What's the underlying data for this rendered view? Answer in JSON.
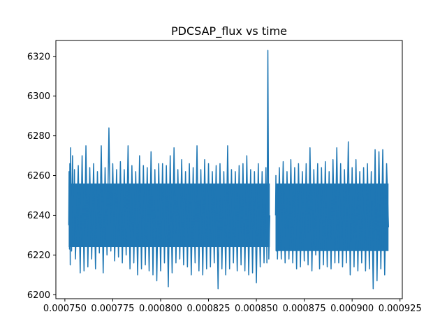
{
  "chart_data": {
    "type": "line",
    "title": "PDCSAP_flux vs time",
    "xlabel": "",
    "ylabel": "",
    "xlim": [
      0.0007453,
      0.0009262
    ],
    "ylim": [
      6198,
      6328
    ],
    "grid": false,
    "legend": "none",
    "x_ticks": [
      0.00075,
      0.000775,
      0.0008,
      0.000825,
      0.00085,
      0.000875,
      0.0009,
      0.000925
    ],
    "x_tick_labels": [
      "0.000750",
      "0.000775",
      "0.000800",
      "0.000825",
      "0.000850",
      "0.000875",
      "0.000900",
      "0.000925"
    ],
    "y_ticks": [
      6200,
      6220,
      6240,
      6260,
      6280,
      6300,
      6320
    ],
    "y_tick_labels": [
      "6200",
      "6220",
      "6240",
      "6260",
      "6280",
      "6300",
      "6320"
    ],
    "series": [
      {
        "color": "#1f77b4",
        "segments": [
          {
            "x_range": [
              0.000752,
              0.000857
            ],
            "points": [
              [
                0.000752,
                6235
              ],
              [
                0.0007522,
                6262
              ],
              [
                0.0007524,
                6223
              ],
              [
                0.0007526,
                6266
              ],
              [
                0.0007528,
                6215
              ],
              [
                0.000753,
                6274
              ],
              [
                0.0007535,
                6222
              ],
              [
                0.000754,
                6270
              ],
              [
                0.0007545,
                6226
              ],
              [
                0.000755,
                6263
              ],
              [
                0.0007555,
                6218
              ],
              [
                0.000757,
                6265
              ],
              [
                0.000758,
                6211
              ],
              [
                0.000759,
                6270
              ],
              [
                0.00076,
                6212
              ],
              [
                0.000761,
                6275
              ],
              [
                0.000762,
                6214
              ],
              [
                0.000763,
                6264
              ],
              [
                0.000764,
                6218
              ],
              [
                0.000765,
                6266
              ],
              [
                0.000766,
                6213
              ],
              [
                0.000767,
                6262
              ],
              [
                0.000768,
                6221
              ],
              [
                0.000769,
                6275
              ],
              [
                0.00077,
                6211
              ],
              [
                0.000771,
                6264
              ],
              [
                0.000772,
                6220
              ],
              [
                0.000773,
                6284
              ],
              [
                0.000774,
                6222
              ],
              [
                0.000775,
                6266
              ],
              [
                0.000776,
                6217
              ],
              [
                0.000777,
                6263
              ],
              [
                0.000778,
                6219
              ],
              [
                0.000779,
                6267
              ],
              [
                0.00078,
                6216
              ],
              [
                0.000781,
                6263
              ],
              [
                0.000782,
                6220
              ],
              [
                0.000783,
                6275
              ],
              [
                0.000784,
                6213
              ],
              [
                0.000785,
                6265
              ],
              [
                0.000786,
                6216
              ],
              [
                0.000787,
                6262
              ],
              [
                0.000788,
                6210
              ],
              [
                0.000789,
                6270
              ],
              [
                0.00079,
                6213
              ],
              [
                0.000791,
                6265
              ],
              [
                0.000792,
                6215
              ],
              [
                0.000793,
                6264
              ],
              [
                0.000794,
                6212
              ],
              [
                0.000795,
                6272
              ],
              [
                0.000796,
                6210
              ],
              [
                0.000797,
                6263
              ],
              [
                0.000798,
                6207
              ],
              [
                0.000799,
                6266
              ],
              [
                0.0008,
                6212
              ],
              [
                0.000801,
                6266
              ],
              [
                0.000802,
                6216
              ],
              [
                0.000803,
                6265
              ],
              [
                0.000804,
                6204
              ],
              [
                0.000805,
                6270
              ],
              [
                0.000806,
                6211
              ],
              [
                0.000807,
                6274
              ],
              [
                0.000808,
                6216
              ],
              [
                0.000809,
                6263
              ],
              [
                0.00081,
                6218
              ],
              [
                0.000811,
                6268
              ],
              [
                0.000812,
                6215
              ],
              [
                0.000813,
                6262
              ],
              [
                0.000814,
                6214
              ],
              [
                0.000815,
                6266
              ],
              [
                0.000816,
                6210
              ],
              [
                0.000817,
                6264
              ],
              [
                0.000818,
                6216
              ],
              [
                0.000819,
                6275
              ],
              [
                0.00082,
                6212
              ],
              [
                0.000821,
                6263
              ],
              [
                0.000822,
                6210
              ],
              [
                0.000823,
                6268
              ],
              [
                0.000824,
                6213
              ],
              [
                0.000825,
                6266
              ],
              [
                0.000826,
                6214
              ],
              [
                0.000827,
                6262
              ],
              [
                0.000828,
                6216
              ],
              [
                0.000829,
                6265
              ],
              [
                0.00083,
                6203
              ],
              [
                0.000831,
                6266
              ],
              [
                0.000832,
                6213
              ],
              [
                0.000833,
                6262
              ],
              [
                0.000834,
                6210
              ],
              [
                0.000835,
                6275
              ],
              [
                0.000836,
                6213
              ],
              [
                0.000837,
                6263
              ],
              [
                0.000838,
                6216
              ],
              [
                0.000839,
                6262
              ],
              [
                0.00084,
                6212
              ],
              [
                0.000841,
                6265
              ],
              [
                0.000842,
                6215
              ],
              [
                0.000843,
                6266
              ],
              [
                0.000844,
                6212
              ],
              [
                0.000845,
                6270
              ],
              [
                0.000846,
                6210
              ],
              [
                0.000847,
                6263
              ],
              [
                0.000848,
                6211
              ],
              [
                0.000849,
                6262
              ],
              [
                0.00085,
                6206
              ],
              [
                0.000851,
                6266
              ],
              [
                0.000852,
                6214
              ],
              [
                0.000853,
                6262
              ],
              [
                0.000854,
                6216
              ],
              [
                0.000855,
                6264
              ],
              [
                0.0008555,
                6216
              ],
              [
                0.000856,
                6323
              ],
              [
                0.0008565,
                6218
              ],
              [
                0.000857,
                6240
              ]
            ]
          },
          {
            "x_range": [
              0.00086,
              0.000919
            ],
            "points": [
              [
                0.00086,
                6240
              ],
              [
                0.0008602,
                6260
              ],
              [
                0.0008605,
                6222
              ],
              [
                0.0008608,
                6255
              ],
              [
                0.000861,
                6218
              ],
              [
                0.000862,
                6264
              ],
              [
                0.000863,
                6218
              ],
              [
                0.000864,
                6267
              ],
              [
                0.000865,
                6216
              ],
              [
                0.000866,
                6262
              ],
              [
                0.000867,
                6218
              ],
              [
                0.000868,
                6268
              ],
              [
                0.000869,
                6216
              ],
              [
                0.00087,
                6264
              ],
              [
                0.000871,
                6213
              ],
              [
                0.000872,
                6266
              ],
              [
                0.000873,
                6214
              ],
              [
                0.000874,
                6262
              ],
              [
                0.000875,
                6217
              ],
              [
                0.000876,
                6266
              ],
              [
                0.000877,
                6215
              ],
              [
                0.000878,
                6274
              ],
              [
                0.000879,
                6212
              ],
              [
                0.00088,
                6263
              ],
              [
                0.000881,
                6220
              ],
              [
                0.000882,
                6266
              ],
              [
                0.000883,
                6213
              ],
              [
                0.000884,
                6264
              ],
              [
                0.000885,
                6215
              ],
              [
                0.000886,
                6267
              ],
              [
                0.000887,
                6214
              ],
              [
                0.000888,
                6262
              ],
              [
                0.000889,
                6213
              ],
              [
                0.00089,
                6268
              ],
              [
                0.000891,
                6216
              ],
              [
                0.000892,
                6274
              ],
              [
                0.000893,
                6216
              ],
              [
                0.000894,
                6266
              ],
              [
                0.000895,
                6214
              ],
              [
                0.000896,
                6263
              ],
              [
                0.000897,
                6216
              ],
              [
                0.000898,
                6277
              ],
              [
                0.000899,
                6210
              ],
              [
                0.0009,
                6264
              ],
              [
                0.000901,
                6214
              ],
              [
                0.000902,
                6268
              ],
              [
                0.000903,
                6212
              ],
              [
                0.000904,
                6262
              ],
              [
                0.000905,
                6216
              ],
              [
                0.000906,
                6264
              ],
              [
                0.000907,
                6212
              ],
              [
                0.000908,
                6266
              ],
              [
                0.000909,
                6213
              ],
              [
                0.00091,
                6262
              ],
              [
                0.000911,
                6203
              ],
              [
                0.000912,
                6273
              ],
              [
                0.000913,
                6207
              ],
              [
                0.000914,
                6272
              ],
              [
                0.000915,
                6213
              ],
              [
                0.000916,
                6273
              ],
              [
                0.000917,
                6210
              ],
              [
                0.000918,
                6266
              ],
              [
                0.000919,
                6234
              ]
            ]
          }
        ],
        "dense_band": [
          {
            "x_range": [
              0.000752,
              0.000857
            ],
            "low": 6224,
            "high": 6256
          },
          {
            "x_range": [
              0.00086,
              0.000919
            ],
            "low": 6222,
            "high": 6256
          }
        ]
      }
    ]
  }
}
